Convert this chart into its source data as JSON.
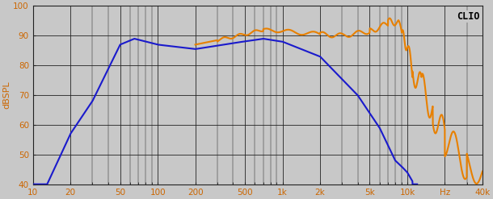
{
  "title": "CLIO",
  "ylabel": "dBSPL",
  "xmin": 10,
  "xmax": 40000,
  "ymin": 40,
  "ymax": 100,
  "yticks": [
    40,
    50,
    60,
    70,
    80,
    90,
    100
  ],
  "xtick_labels": [
    "10",
    "20",
    "50",
    "100",
    "200",
    "500",
    "1k",
    "2k",
    "5k",
    "10k",
    "Hz",
    "40k"
  ],
  "xtick_values": [
    10,
    20,
    50,
    100,
    200,
    500,
    1000,
    2000,
    5000,
    10000,
    20000,
    40000
  ],
  "blue_color": "#1a1acc",
  "orange_color": "#e88000",
  "bg_color": "#c8c8c8",
  "grid_color": "#222222",
  "tick_color": "#cc6600",
  "figwidth": 6.1,
  "figheight": 2.47,
  "dpi": 100
}
